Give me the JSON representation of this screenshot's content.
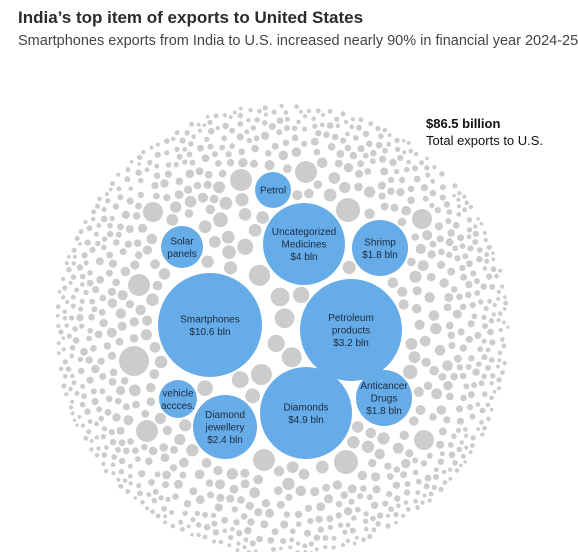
{
  "header": {
    "title": "India’s top item of exports to United States",
    "subtitle": "Smartphones exports from India to U.S. increased nearly 90% in financial year 2024-25"
  },
  "annotation": {
    "value": "$86.5 billion",
    "label": "Total exports to U.S."
  },
  "colors": {
    "highlight": "#66ace8",
    "other": "#cccccc"
  },
  "chart_data": {
    "type": "bubble",
    "title": "India’s top item of exports to United States",
    "subtitle": "Smartphones exports from India to U.S. increased nearly 90% in financial year 2024-25",
    "total": {
      "value": 86.5,
      "unit": "billion USD",
      "text": "$86.5 billion"
    },
    "bubbles": [
      {
        "name": "Smartphones",
        "value": 10.6,
        "lines": [
          "Smartphones",
          "$10.6 bln"
        ]
      },
      {
        "name": "Diamonds",
        "value": 4.9,
        "lines": [
          "Diamonds",
          "$4.9 bln"
        ]
      },
      {
        "name": "Uncategorized Medicines",
        "value": 4.0,
        "lines": [
          "Uncategorized",
          "Medicines",
          "$4 bln"
        ]
      },
      {
        "name": "Petroleum products",
        "value": 3.2,
        "lines": [
          "Petroleum",
          "products",
          "$3.2 bln"
        ]
      },
      {
        "name": "Diamond jewellery",
        "value": 2.4,
        "lines": [
          "Diamond",
          "jewellery",
          "$2.4 bln"
        ]
      },
      {
        "name": "Shrimp",
        "value": 1.8,
        "lines": [
          "Shrimp",
          "$1.8 bln"
        ]
      },
      {
        "name": "Anticancer Drugs",
        "value": 1.8,
        "lines": [
          "Anticancer",
          "Drugs",
          "$1.8 bln"
        ]
      },
      {
        "name": "Solar panels",
        "value": null,
        "lines": [
          "Solar",
          "panels"
        ]
      },
      {
        "name": "vehicle acces.",
        "value": null,
        "lines": [
          "vehicle",
          "accces."
        ]
      },
      {
        "name": "Petrol",
        "value": null,
        "lines": [
          "Petrol"
        ]
      }
    ]
  }
}
